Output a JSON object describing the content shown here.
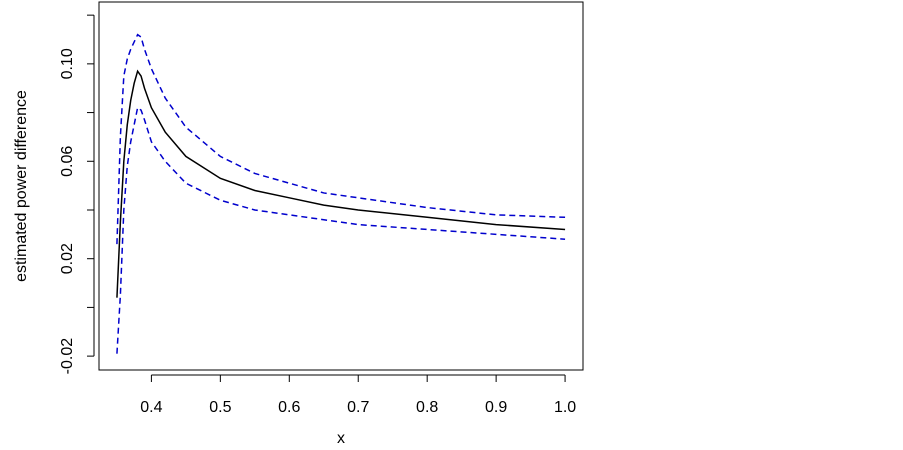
{
  "chart_data": {
    "type": "line",
    "xlabel": "x",
    "ylabel": "estimated power difference",
    "x": [
      0.35,
      0.355,
      0.36,
      0.365,
      0.37,
      0.375,
      0.38,
      0.385,
      0.39,
      0.4,
      0.42,
      0.45,
      0.5,
      0.55,
      0.6,
      0.65,
      0.7,
      0.8,
      0.9,
      1.0
    ],
    "series": [
      {
        "color": "#000000",
        "linestyle": "solid",
        "values": [
          0.004,
          0.035,
          0.06,
          0.075,
          0.085,
          0.092,
          0.097,
          0.095,
          0.09,
          0.082,
          0.072,
          0.062,
          0.053,
          0.048,
          0.045,
          0.042,
          0.04,
          0.037,
          0.034,
          0.032
        ]
      },
      {
        "color": "#0000cd",
        "linestyle": "dashed",
        "values": [
          0.026,
          0.07,
          0.095,
          0.102,
          0.106,
          0.109,
          0.112,
          0.111,
          0.106,
          0.098,
          0.086,
          0.074,
          0.062,
          0.055,
          0.051,
          0.047,
          0.045,
          0.041,
          0.038,
          0.037
        ]
      },
      {
        "color": "#0000cd",
        "linestyle": "dashed",
        "values": [
          -0.019,
          0.005,
          0.04,
          0.058,
          0.068,
          0.075,
          0.082,
          0.081,
          0.077,
          0.068,
          0.06,
          0.051,
          0.044,
          0.04,
          0.038,
          0.036,
          0.034,
          0.032,
          0.03,
          0.028
        ]
      }
    ],
    "xlim": [
      0.324,
      1.026
    ],
    "xticks": [
      0.4,
      0.5,
      0.6,
      0.7,
      0.8,
      0.9,
      {
        "value": 1,
        "label": "1.0"
      }
    ],
    "ylim": [
      -0.0257,
      0.1254
    ],
    "yticks": [
      -0.02,
      {
        "value": 0,
        "label": null
      },
      0.02,
      {
        "value": 0.04,
        "label": null
      },
      0.06,
      {
        "value": 0.08,
        "label": null
      },
      {
        "value": 0.1,
        "label": "0.10"
      },
      {
        "value": 0.12,
        "label": null
      }
    ],
    "grid": false
  }
}
